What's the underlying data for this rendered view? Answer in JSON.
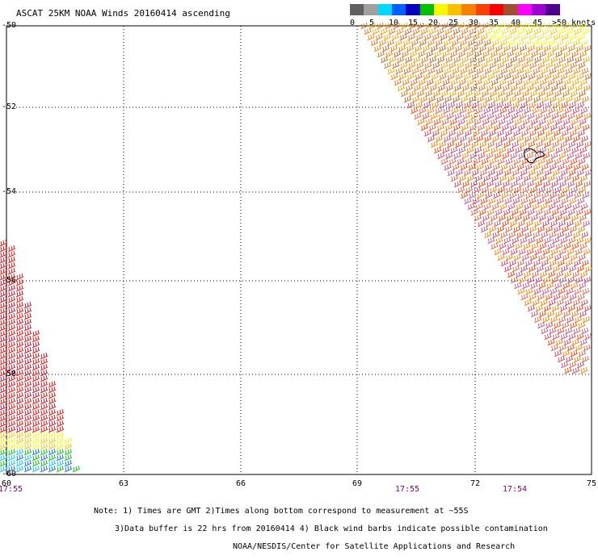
{
  "title": "ASCAT 25KM NOAA Winds 20160414 ascending",
  "legend": {
    "labels": [
      "0",
      "5",
      "10",
      "15",
      "20",
      "25",
      "30",
      "35",
      "40",
      "45",
      ">50 knots"
    ],
    "colors": [
      "#606060",
      "#a0a0a0",
      "#00d8ff",
      "#0060ff",
      "#0000c0",
      "#00c000",
      "#f8f800",
      "#f8c000",
      "#f88000",
      "#f84000",
      "#f80000",
      "#a05030",
      "#ff00ff",
      "#a000d0",
      "#500090"
    ]
  },
  "axes": {
    "lat_labels": [
      "-50",
      "-52",
      "-54",
      "-56",
      "-58",
      "-60"
    ],
    "lon_labels": [
      "60",
      "63",
      "66",
      "69",
      "72",
      "75"
    ]
  },
  "times": [
    "17:55",
    "17:55",
    "17:54"
  ],
  "notes": [
    "Note: 1) Times are GMT 2)Times along bottom correspond to measurement at ~55S",
    "3)Data buffer is 22 hrs from 20160414 4) Black wind barbs indicate possible contamination",
    "NOAA/NESDIS/Center for Satellite Applications and Research"
  ]
}
